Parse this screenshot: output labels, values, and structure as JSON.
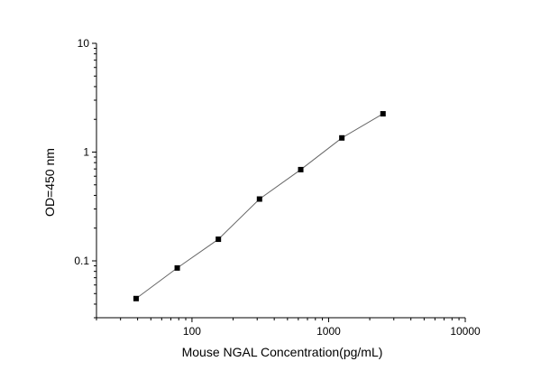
{
  "chart_data": {
    "type": "scatter",
    "title": "",
    "xlabel": "Mouse NGAL Concentration(pg/mL)",
    "ylabel": "OD=450 nm",
    "x_scale": "log",
    "y_scale": "log",
    "xlim": [
      20,
      10000
    ],
    "ylim": [
      0.03,
      10
    ],
    "x_ticks": [
      100,
      1000,
      10000
    ],
    "x_tick_labels": [
      "100",
      "1000",
      "10000"
    ],
    "y_ticks": [
      0.1,
      1,
      10
    ],
    "y_tick_labels": [
      "0.1",
      "1",
      "10"
    ],
    "grid": false,
    "legend": "none",
    "connect_points": true,
    "series": [
      {
        "x": [
          39,
          78,
          156,
          312,
          625,
          1250,
          2500
        ],
        "y": [
          0.045,
          0.086,
          0.158,
          0.37,
          0.69,
          1.35,
          2.25
        ],
        "marker": "square",
        "color": "#000000",
        "line_color": "#666666"
      }
    ]
  }
}
